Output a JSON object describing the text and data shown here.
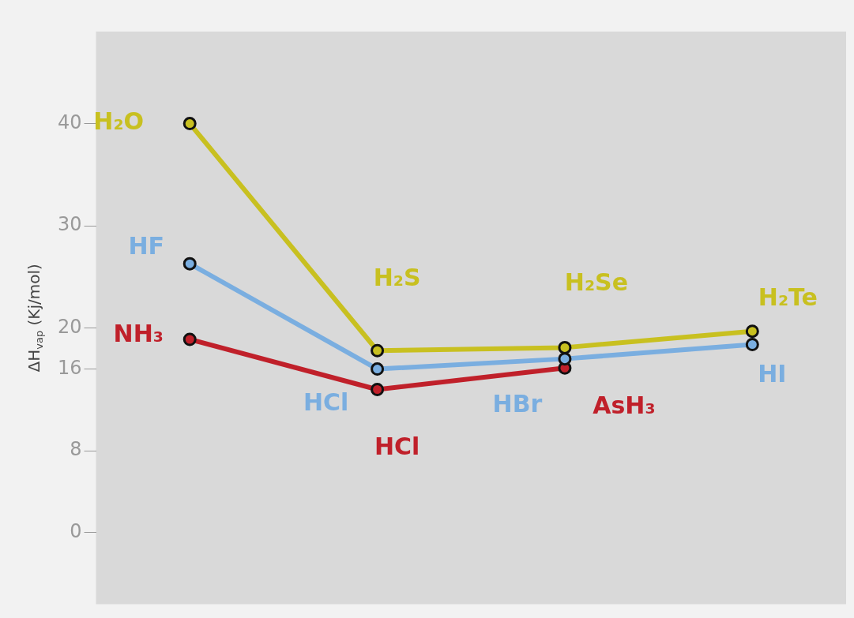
{
  "chart_data": {
    "type": "line",
    "ylabel": "ΔH$_{vap}$ (Kj/mol)",
    "categories": [
      null,
      null,
      null,
      null
    ],
    "ylim": [
      -7,
      49
    ],
    "yticks": [
      0,
      8,
      16,
      20,
      30,
      40
    ],
    "tick_labels": "y",
    "legend": false,
    "marker": "circle",
    "line_style": "solid",
    "series": [
      {
        "color": "#c8c020",
        "values": [
          40,
          17.8,
          18.1,
          19.7
        ],
        "value_labels": [
          "H₂O",
          "H₂S",
          "H₂Se",
          "H₂Te"
        ]
      },
      {
        "color": "#7aaee0",
        "values": [
          26.3,
          16,
          17,
          18.4
        ],
        "value_labels": [
          "HF",
          "HCl",
          "HBr",
          "HI"
        ]
      },
      {
        "color": "#c0202a",
        "values": [
          18.9,
          14,
          16.1,
          null
        ],
        "value_labels": [
          "NH₃",
          "HCl",
          "AsH₃",
          null
        ]
      }
    ]
  }
}
